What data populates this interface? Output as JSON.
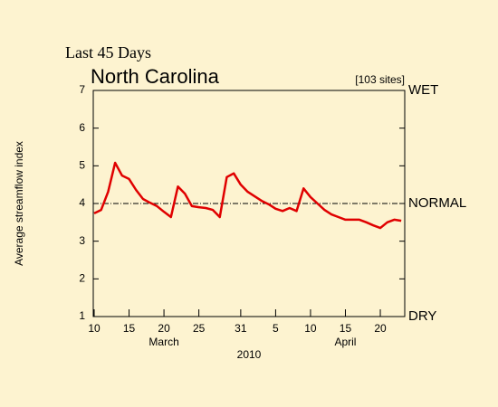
{
  "chart_data": {
    "type": "line",
    "supertitle": "Last 45 Days",
    "title": "North Carolina",
    "subtitle": "[103 sites]",
    "ylabel": "Average streamflow index",
    "year_label": "2010",
    "month_labels": [
      {
        "value": 10,
        "label": "March"
      },
      {
        "value": 36,
        "label": "April"
      }
    ],
    "top_label": "WET",
    "bottom_label": "DRY",
    "reference_line": {
      "value": 4,
      "label": "NORMAL"
    },
    "x": [
      0,
      1,
      2,
      3,
      4,
      5,
      6,
      7,
      8,
      9,
      10,
      11,
      12,
      13,
      14,
      15,
      16,
      17,
      18,
      19,
      20,
      21,
      22,
      23,
      24,
      25,
      26,
      27,
      28,
      29,
      30,
      31,
      32,
      33,
      34,
      35,
      36,
      37,
      38,
      39,
      40,
      41,
      42,
      43,
      44
    ],
    "series": [
      {
        "color": "#e00000",
        "values": [
          3.74,
          3.83,
          4.31,
          5.08,
          4.74,
          4.65,
          4.36,
          4.12,
          4.02,
          3.93,
          3.78,
          3.64,
          4.45,
          4.26,
          3.93,
          3.9,
          3.88,
          3.83,
          3.64,
          4.7,
          4.8,
          4.5,
          4.31,
          4.19,
          4.07,
          3.98,
          3.86,
          3.8,
          3.88,
          3.8,
          4.4,
          4.17,
          4.0,
          3.83,
          3.71,
          3.64,
          3.57,
          3.57,
          3.57,
          3.5,
          3.42,
          3.35,
          3.5,
          3.57,
          3.54
        ]
      }
    ],
    "xlim": [
      0,
      44.5
    ],
    "xticks": [
      {
        "value": 0,
        "label": "10"
      },
      {
        "value": 5,
        "label": "15"
      },
      {
        "value": 10,
        "label": "20"
      },
      {
        "value": 15,
        "label": "25"
      },
      {
        "value": 21,
        "label": "31"
      },
      {
        "value": 26,
        "label": "5"
      },
      {
        "value": 31,
        "label": "10"
      },
      {
        "value": 36,
        "label": "15"
      },
      {
        "value": 41,
        "label": "20"
      }
    ],
    "ylim": [
      1,
      7
    ],
    "yticks": [
      1,
      2,
      3,
      4,
      5,
      6,
      7
    ]
  }
}
